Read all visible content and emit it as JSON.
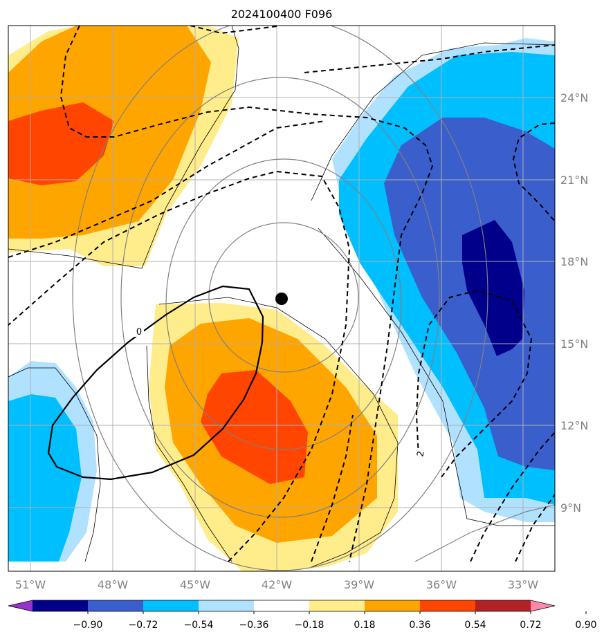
{
  "title": "2024100400 F096",
  "map": {
    "lon_labels": [
      "51°W",
      "48°W",
      "45°W",
      "42°W",
      "39°W",
      "36°W",
      "33°W"
    ],
    "lat_labels": [
      "24°N",
      "21°N",
      "18°N",
      "15°N",
      "12°N",
      "9°N"
    ],
    "contour_labels": [
      "0",
      "2"
    ],
    "storm_center_marker": "filled-circle"
  },
  "colorbar": {
    "ticks": [
      "−0.90",
      "−0.72",
      "−0.54",
      "−0.36",
      "−0.18",
      "0.18",
      "0.36",
      "0.54",
      "0.72",
      "0.90"
    ],
    "colors": [
      "#9932cc",
      "#00008b",
      "#3a5fcd",
      "#00bfff",
      "#b0e2ff",
      "#ffffff",
      "#ffec8b",
      "#ffa500",
      "#ff4500",
      "#b22222",
      "#ff88aa"
    ]
  },
  "colors": {
    "land_border": "#000000",
    "gridline": "#b0b0b0",
    "gray_contour": "#808080",
    "dashed_contour": "#000000"
  }
}
